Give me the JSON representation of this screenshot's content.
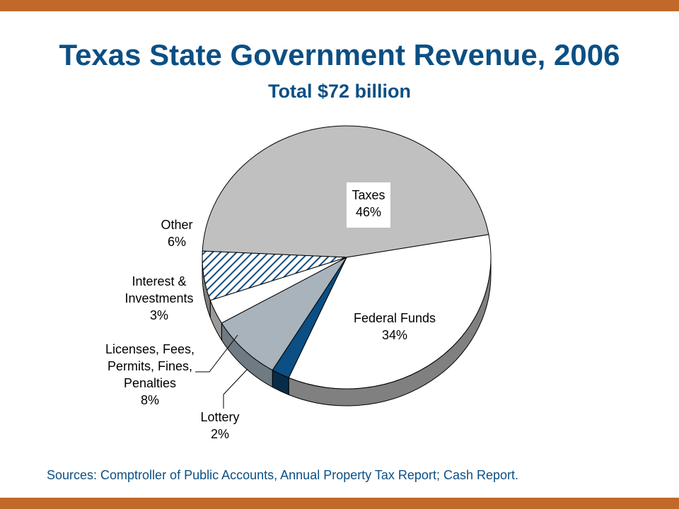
{
  "colors": {
    "frame_bar": "#c0692b",
    "title": "#0b4f84",
    "taxes": "#c0c0c0",
    "federal": "#ffffff",
    "lottery": "#0b4f84",
    "licenses": "#a9b3bb",
    "interest": "#ffffff",
    "other_hatch": "#0b4f84",
    "side_dark": "#808080",
    "outline": "#000000"
  },
  "title": "Texas State Government Revenue, 2006",
  "subtitle": "Total $72 billion",
  "source": "Sources: Comptroller of Public Accounts, Annual Property Tax Report; Cash Report.",
  "chart_data": {
    "type": "pie",
    "title": "Texas State Government Revenue, 2006",
    "subtitle": "Total $72 billion",
    "slices": [
      {
        "label": "Taxes",
        "pct_label": "46%",
        "value": 46
      },
      {
        "label": "Federal Funds",
        "pct_label": "34%",
        "value": 34
      },
      {
        "label": "Lottery",
        "pct_label": "2%",
        "value": 2
      },
      {
        "label": "Licenses, Fees, Permits, Fines, Penalties",
        "pct_label": "8%",
        "value": 8
      },
      {
        "label": "Interest & Investments",
        "pct_label": "3%",
        "value": 3
      },
      {
        "label": "Other",
        "pct_label": "6%",
        "value": 6
      }
    ]
  },
  "labels": {
    "taxes": {
      "name": "Taxes",
      "pct": "46%"
    },
    "federal": {
      "name": "Federal Funds",
      "pct": "34%"
    },
    "lottery": {
      "name": "Lottery",
      "pct": "2%"
    },
    "licenses": {
      "line1": "Licenses, Fees,",
      "line2": "Permits, Fines,",
      "line3": "Penalties",
      "pct": "8%"
    },
    "interest": {
      "line1": "Interest &",
      "line2": "Investments",
      "pct": "3%"
    },
    "other": {
      "name": "Other",
      "pct": "6%"
    }
  }
}
